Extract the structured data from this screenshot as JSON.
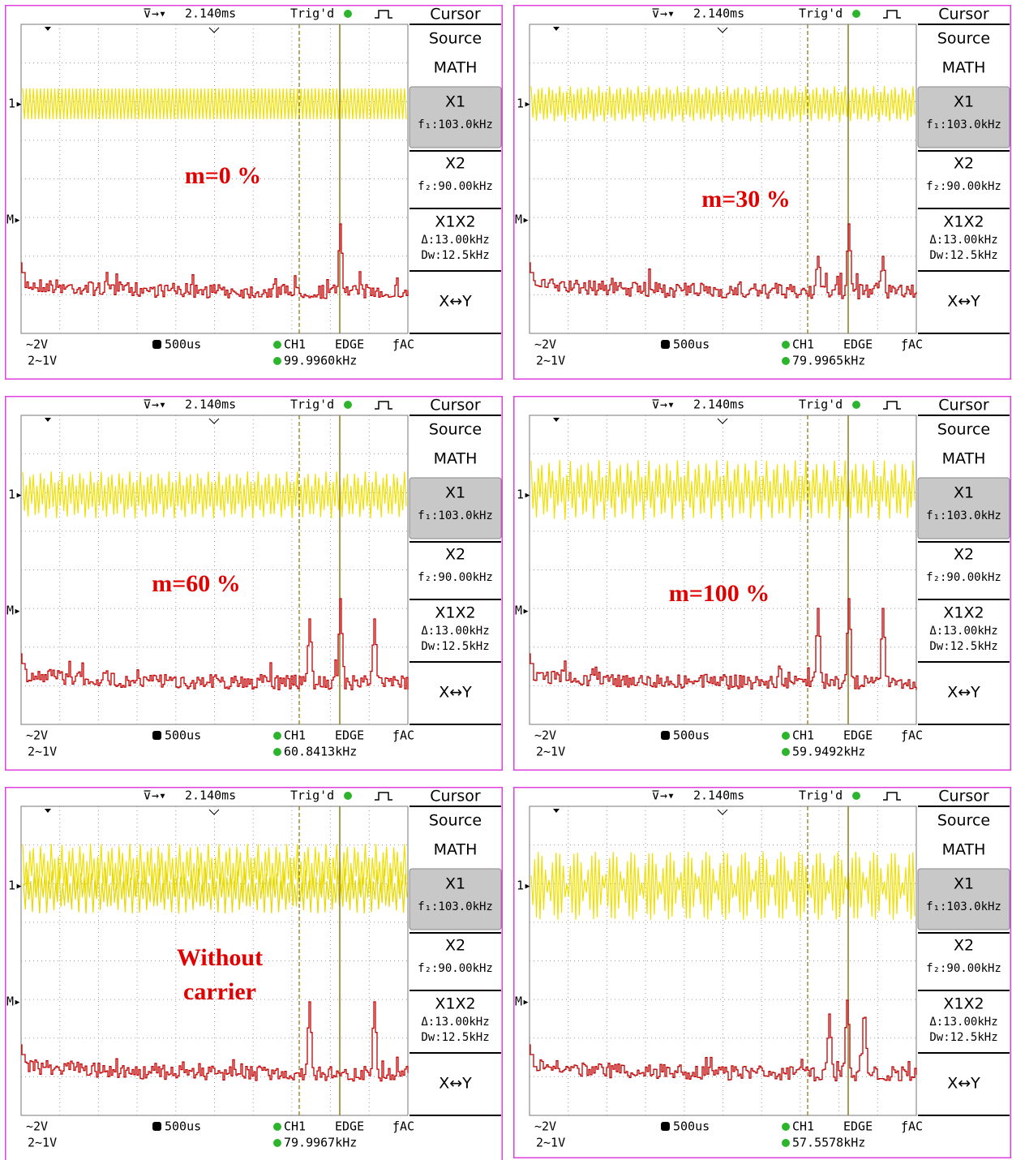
{
  "panels": [
    {
      "timebase": "2.140ms",
      "trig": "Trig'd",
      "menu_title": "Cursor",
      "source_label": "Source",
      "source_value": "MATH",
      "x1": "X1",
      "x1_value": "f₁:103.0kHz",
      "x2": "X2",
      "x2_value": "f₂:90.00kHz",
      "x1x2": "X1X2",
      "delta": "Δ:13.00kHz",
      "dw": "Dw:12.5kHz",
      "xy": "X↔Y",
      "ch1_scale": "~2V",
      "ch2_scale": "2~1V",
      "time_div": "500us",
      "trig_source": "CH1",
      "trig_type": "EDGE",
      "coupling": "AC",
      "frequency": "99.9960kHz",
      "label": [
        "m=0 %"
      ]
    },
    {
      "timebase": "2.140ms",
      "trig": "Trig'd",
      "menu_title": "Cursor",
      "source_label": "Source",
      "source_value": "MATH",
      "x1": "X1",
      "x1_value": "f₁:103.0kHz",
      "x2": "X2",
      "x2_value": "f₂:90.00kHz",
      "x1x2": "X1X2",
      "delta": "Δ:13.00kHz",
      "dw": "Dw:12.5kHz",
      "xy": "X↔Y",
      "ch1_scale": "~2V",
      "ch2_scale": "2~1V",
      "time_div": "500us",
      "trig_source": "CH1",
      "trig_type": "EDGE",
      "coupling": "AC",
      "frequency": "79.9965kHz",
      "label": [
        "m=30 %"
      ]
    },
    {
      "timebase": "2.140ms",
      "trig": "Trig'd",
      "menu_title": "Cursor",
      "source_label": "Source",
      "source_value": "MATH",
      "x1": "X1",
      "x1_value": "f₁:103.0kHz",
      "x2": "X2",
      "x2_value": "f₂:90.00kHz",
      "x1x2": "X1X2",
      "delta": "Δ:13.00kHz",
      "dw": "Dw:12.5kHz",
      "xy": "X↔Y",
      "ch1_scale": "~2V",
      "ch2_scale": "2~1V",
      "time_div": "500us",
      "trig_source": "CH1",
      "trig_type": "EDGE",
      "coupling": "AC",
      "frequency": "60.8413kHz",
      "label": [
        "m=60 %"
      ]
    },
    {
      "timebase": "2.140ms",
      "trig": "Trig'd",
      "menu_title": "Cursor",
      "source_label": "Source",
      "source_value": "MATH",
      "x1": "X1",
      "x1_value": "f₁:103.0kHz",
      "x2": "X2",
      "x2_value": "f₂:90.00kHz",
      "x1x2": "X1X2",
      "delta": "Δ:13.00kHz",
      "dw": "Dw:12.5kHz",
      "xy": "X↔Y",
      "ch1_scale": "~2V",
      "ch2_scale": "2~1V",
      "time_div": "500us",
      "trig_source": "CH1",
      "trig_type": "EDGE",
      "coupling": "AC",
      "frequency": "59.9492kHz",
      "label": [
        "m=100 %"
      ]
    },
    {
      "timebase": "2.140ms",
      "trig": "Trig'd",
      "menu_title": "Cursor",
      "source_label": "Source",
      "source_value": "MATH",
      "x1": "X1",
      "x1_value": "f₁:103.0kHz",
      "x2": "X2",
      "x2_value": "f₂:90.00kHz",
      "x1x2": "X1X2",
      "delta": "Δ:13.00kHz",
      "dw": "Dw:12.5kHz",
      "xy": "X↔Y",
      "ch1_scale": "~2V",
      "ch2_scale": "2~1V",
      "time_div": "500us",
      "trig_source": "CH1",
      "trig_type": "EDGE",
      "coupling": "AC",
      "frequency": "79.9967kHz",
      "label": [
        "Without",
        "carrier"
      ]
    },
    {
      "timebase": "2.140ms",
      "trig": "Trig'd",
      "menu_title": "Cursor",
      "source_label": "Source",
      "source_value": "MATH",
      "x1": "X1",
      "x1_value": "f₁:103.0kHz",
      "x2": "X2",
      "x2_value": "f₂:90.00kHz",
      "x1x2": "X1X2",
      "delta": "Δ:13.00kHz",
      "dw": "Dw:12.5kHz",
      "xy": "X↔Y",
      "ch1_scale": "~2V",
      "ch2_scale": "2~1V",
      "time_div": "500us",
      "trig_source": "CH1",
      "trig_type": "EDGE",
      "coupling": "AC",
      "frequency": "57.5578kHz"
    }
  ]
}
